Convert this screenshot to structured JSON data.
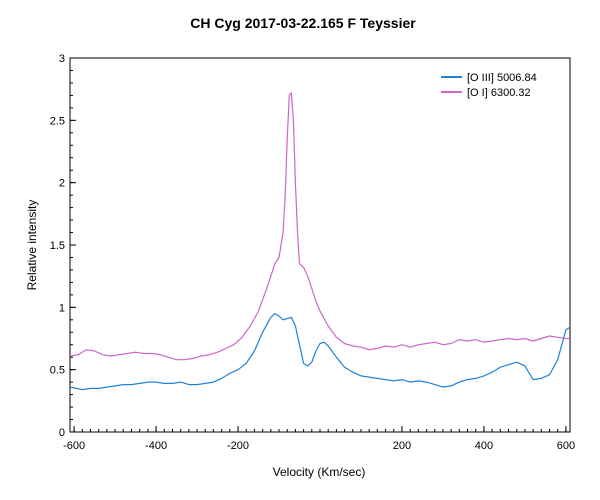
{
  "chart_data": {
    "type": "line",
    "title": "CH Cyg  2017-03-22.165  F Teyssier",
    "xlabel": "Velocity (Km/sec)",
    "ylabel": "Relative intensity",
    "xlim": [
      -610,
      610
    ],
    "ylim": [
      0,
      3
    ],
    "xticks": [
      -600,
      -400,
      -200,
      200,
      400,
      600
    ],
    "xtick_labels": [
      "-600",
      "-400",
      "-200",
      "200",
      "400",
      "600"
    ],
    "yticks": [
      0,
      0.5,
      1,
      1.5,
      2,
      2.5,
      3
    ],
    "ytick_labels": [
      "0",
      "0.5",
      "1",
      "1.5",
      "2",
      "2.5",
      "3"
    ],
    "grid": false,
    "legend_position": "top-right",
    "series": [
      {
        "name": "[O III]  5006.84",
        "color": "#1f82d6",
        "x": [
          -610,
          -580,
          -560,
          -540,
          -520,
          -500,
          -480,
          -460,
          -440,
          -420,
          -400,
          -380,
          -360,
          -340,
          -320,
          -300,
          -280,
          -260,
          -240,
          -220,
          -200,
          -180,
          -160,
          -140,
          -120,
          -110,
          -100,
          -90,
          -80,
          -70,
          -60,
          -50,
          -40,
          -30,
          -20,
          -10,
          0,
          10,
          20,
          40,
          60,
          80,
          100,
          120,
          140,
          160,
          180,
          200,
          220,
          240,
          260,
          280,
          300,
          320,
          340,
          360,
          380,
          400,
          420,
          440,
          460,
          480,
          500,
          520,
          540,
          560,
          580,
          600,
          610
        ],
        "y": [
          0.36,
          0.34,
          0.35,
          0.35,
          0.36,
          0.37,
          0.38,
          0.38,
          0.39,
          0.4,
          0.4,
          0.39,
          0.39,
          0.4,
          0.38,
          0.38,
          0.39,
          0.4,
          0.43,
          0.47,
          0.5,
          0.55,
          0.65,
          0.8,
          0.92,
          0.95,
          0.93,
          0.9,
          0.91,
          0.92,
          0.85,
          0.7,
          0.55,
          0.53,
          0.56,
          0.65,
          0.71,
          0.72,
          0.69,
          0.6,
          0.52,
          0.48,
          0.45,
          0.44,
          0.43,
          0.42,
          0.41,
          0.42,
          0.4,
          0.41,
          0.4,
          0.38,
          0.36,
          0.37,
          0.4,
          0.42,
          0.43,
          0.45,
          0.48,
          0.52,
          0.54,
          0.56,
          0.53,
          0.42,
          0.43,
          0.46,
          0.58,
          0.82,
          0.84
        ]
      },
      {
        "name": "[O I]  6300.32",
        "color": "#cc66cc",
        "x": [
          -610,
          -590,
          -570,
          -550,
          -530,
          -510,
          -490,
          -470,
          -450,
          -430,
          -410,
          -390,
          -370,
          -350,
          -330,
          -310,
          -290,
          -270,
          -250,
          -230,
          -210,
          -190,
          -170,
          -150,
          -130,
          -120,
          -110,
          -100,
          -90,
          -85,
          -80,
          -75,
          -70,
          -65,
          -60,
          -55,
          -50,
          -40,
          -30,
          -20,
          -10,
          0,
          20,
          40,
          60,
          80,
          100,
          120,
          140,
          160,
          180,
          200,
          220,
          240,
          260,
          280,
          300,
          320,
          340,
          360,
          380,
          400,
          420,
          440,
          460,
          480,
          500,
          520,
          540,
          560,
          580,
          600,
          610
        ],
        "y": [
          0.61,
          0.62,
          0.66,
          0.65,
          0.62,
          0.61,
          0.62,
          0.63,
          0.64,
          0.63,
          0.63,
          0.62,
          0.6,
          0.58,
          0.58,
          0.59,
          0.61,
          0.62,
          0.64,
          0.67,
          0.7,
          0.76,
          0.85,
          0.97,
          1.15,
          1.25,
          1.35,
          1.4,
          1.6,
          1.9,
          2.35,
          2.7,
          2.72,
          2.5,
          2.0,
          1.6,
          1.35,
          1.32,
          1.25,
          1.15,
          1.05,
          0.97,
          0.85,
          0.76,
          0.71,
          0.69,
          0.68,
          0.66,
          0.67,
          0.69,
          0.68,
          0.7,
          0.68,
          0.7,
          0.71,
          0.72,
          0.7,
          0.71,
          0.74,
          0.73,
          0.74,
          0.72,
          0.73,
          0.74,
          0.75,
          0.74,
          0.75,
          0.73,
          0.75,
          0.77,
          0.76,
          0.75,
          0.75
        ]
      }
    ]
  }
}
